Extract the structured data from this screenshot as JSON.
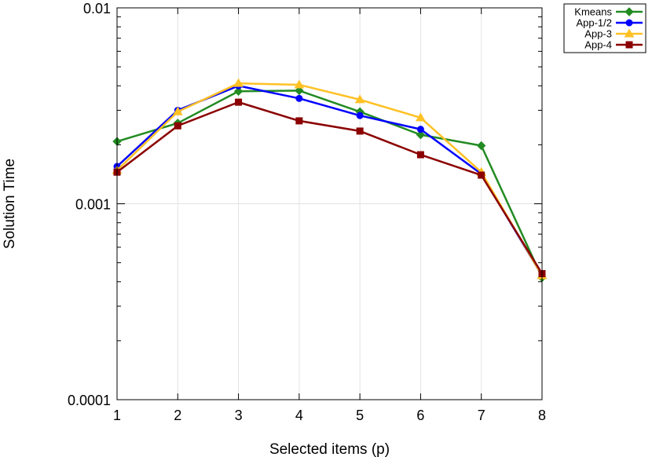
{
  "chart_data": {
    "type": "line",
    "title": "",
    "xlabel": "Selected items (p)",
    "ylabel": "Solution Time",
    "x": [
      1,
      2,
      3,
      4,
      5,
      6,
      7,
      8
    ],
    "xlim": [
      1,
      8
    ],
    "ylim": [
      0.0001,
      0.01
    ],
    "yscale": "log",
    "grid": true,
    "legend_position": "top-right",
    "x_tick_labels": [
      "1",
      "2",
      "3",
      "4",
      "5",
      "6",
      "7",
      "8"
    ],
    "y_tick_labels": [
      "0.0001",
      "0.001",
      "0.01"
    ],
    "series": [
      {
        "name": "Kmeans",
        "color": "#228b22",
        "marker": "diamond",
        "values": [
          0.00208,
          0.00258,
          0.00375,
          0.00378,
          0.00295,
          0.00225,
          0.00198,
          0.00042
        ]
      },
      {
        "name": "App-1/2",
        "color": "#0000ff",
        "marker": "circle",
        "values": [
          0.00155,
          0.003,
          0.004,
          0.00345,
          0.00282,
          0.0024,
          0.00142,
          0.00043
        ]
      },
      {
        "name": "App-3",
        "color": "#ffc125",
        "marker": "triangle",
        "values": [
          0.00148,
          0.00295,
          0.00412,
          0.00405,
          0.0034,
          0.00275,
          0.00145,
          0.00043
        ]
      },
      {
        "name": "App-4",
        "color": "#8b0000",
        "marker": "square",
        "values": [
          0.00145,
          0.0025,
          0.0033,
          0.00265,
          0.00235,
          0.00178,
          0.0014,
          0.00044
        ]
      }
    ]
  }
}
